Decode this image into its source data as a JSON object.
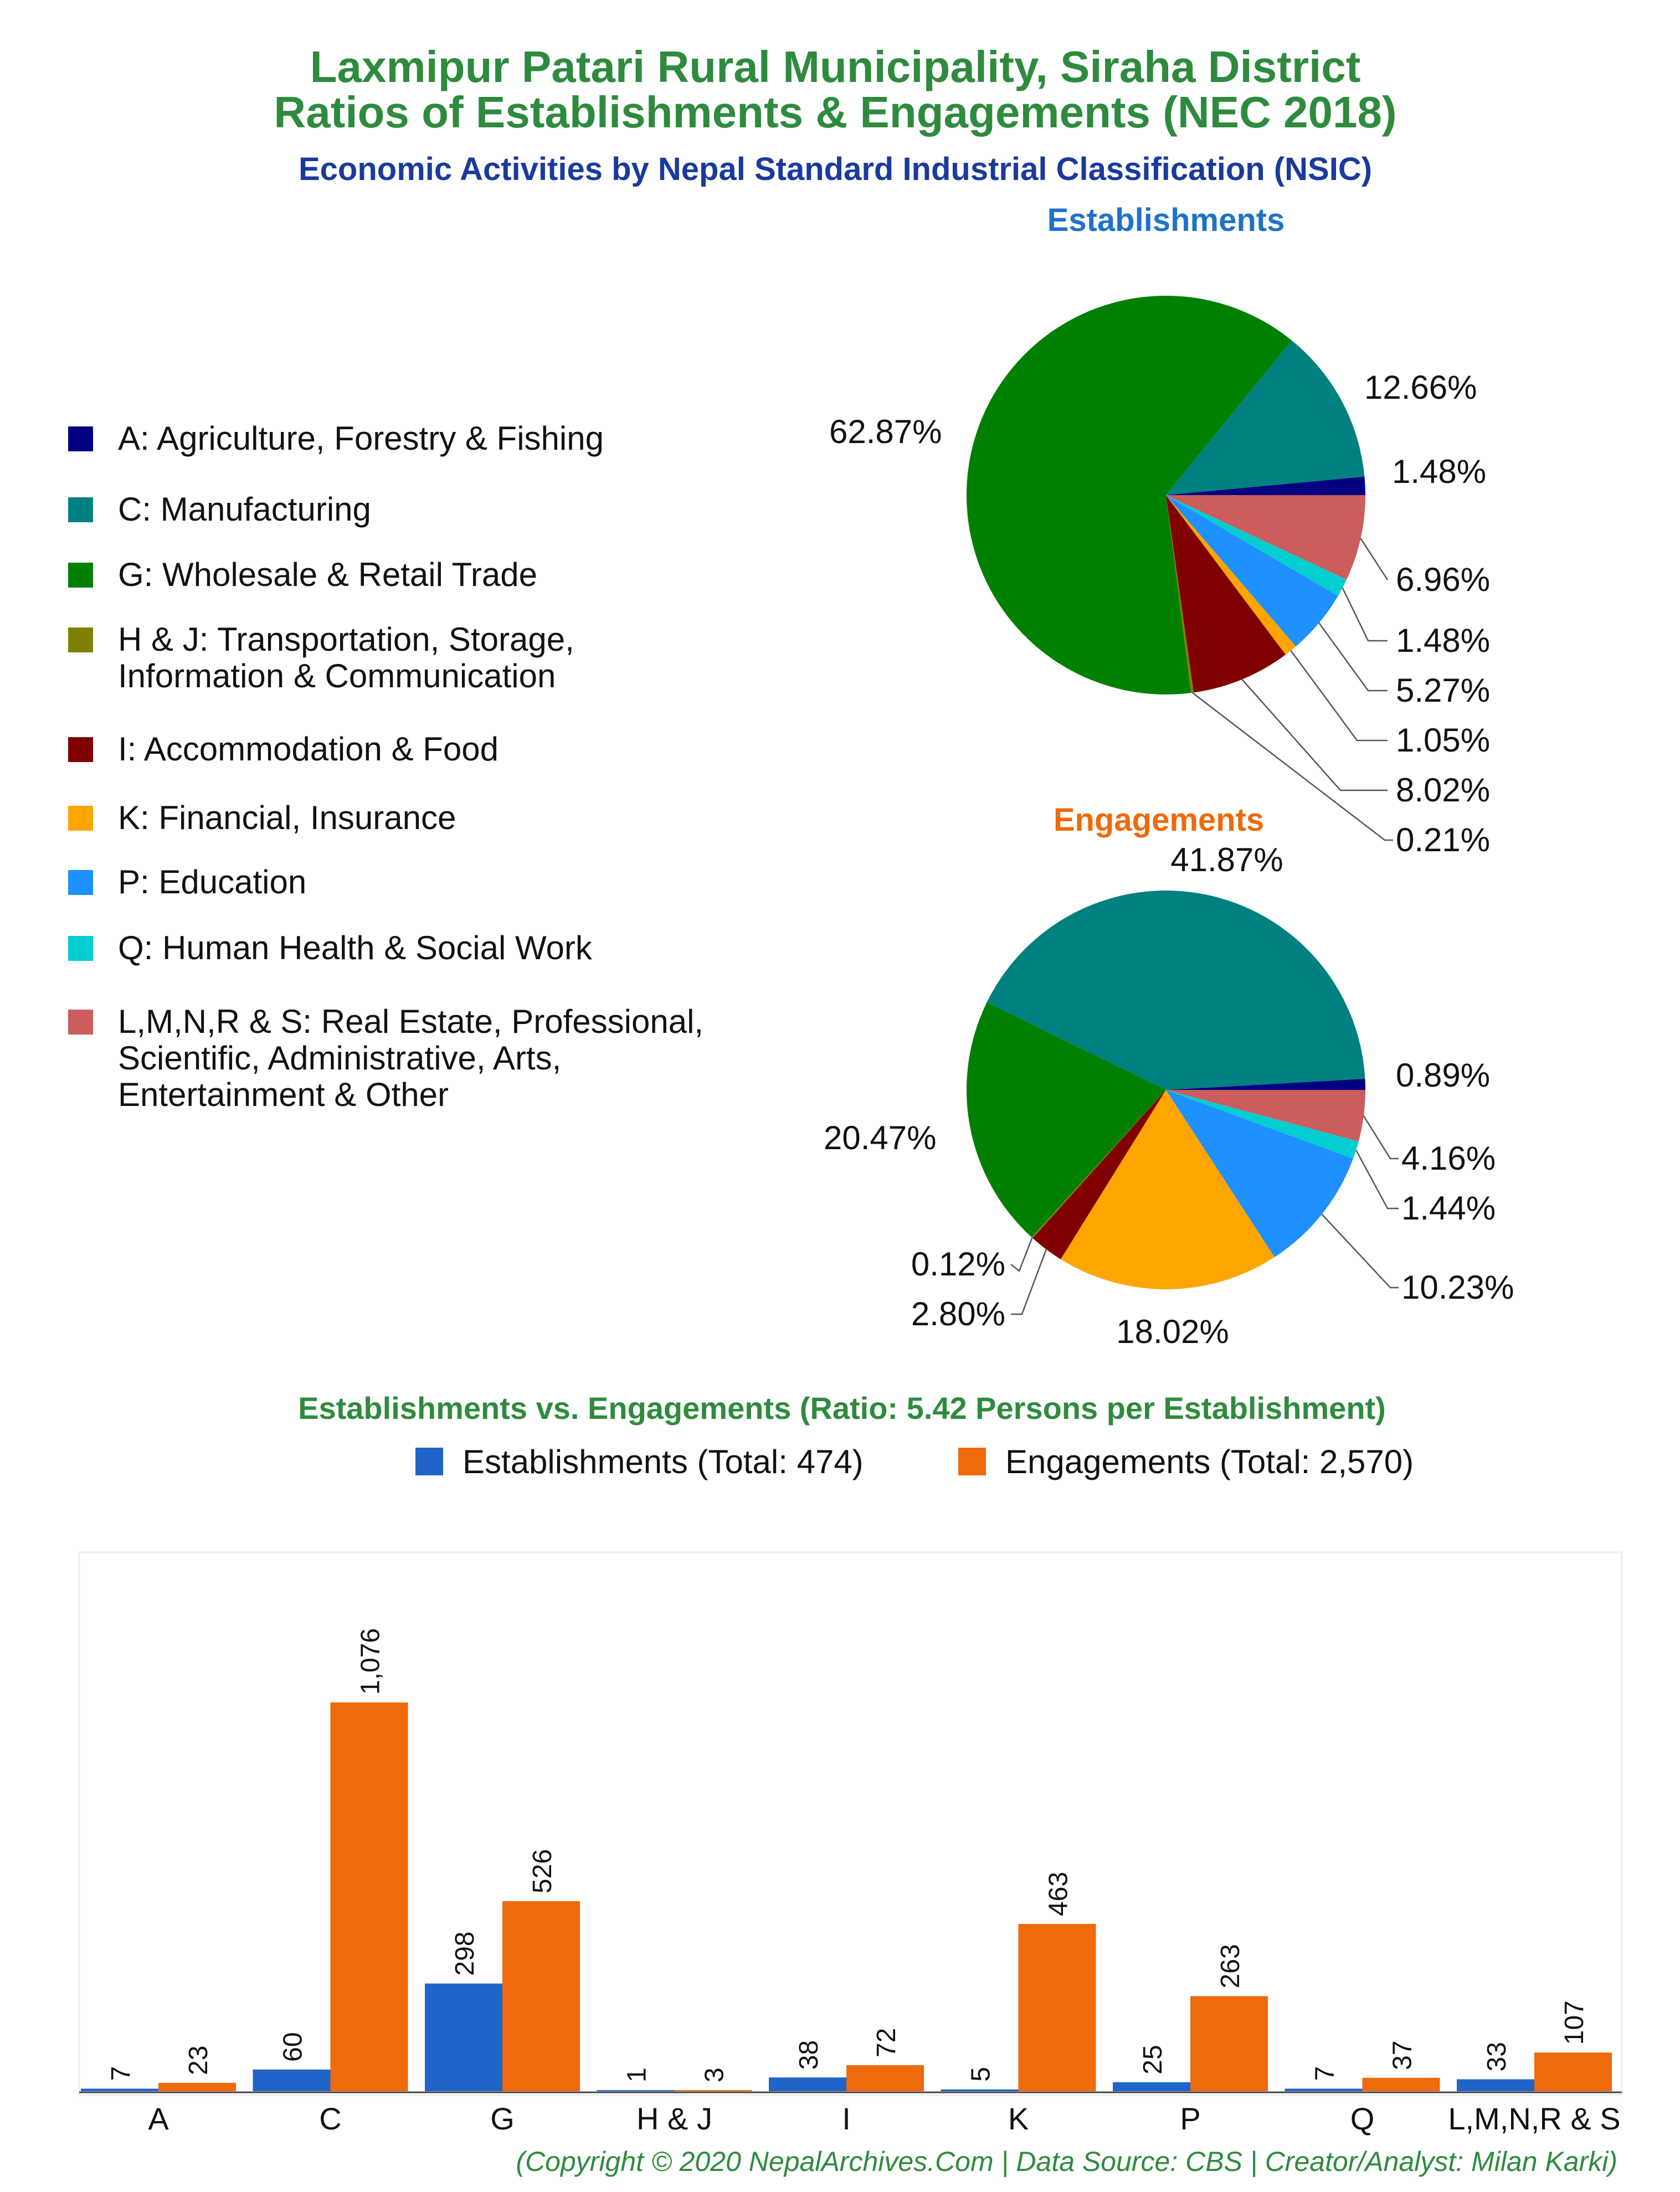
{
  "title": {
    "line1": "Laxmipur Patari Rural Municipality, Siraha District",
    "line2": "Ratios of Establishments & Engagements (NEC 2018)",
    "subtitle": "Economic Activities by Nepal Standard Industrial Classification (NSIC)"
  },
  "colors": {
    "title": "#2e8b3e",
    "subtitle": "#1a3a9c",
    "establishments": "#1f64c8",
    "engagements": "#ee6a0a",
    "A": "#000080",
    "C": "#008080",
    "G": "#008000",
    "HJ": "#808000",
    "I": "#800000",
    "K": "#ffa500",
    "P": "#1e90ff",
    "Q": "#00ced1",
    "LMNRS": "#cd5c5c"
  },
  "legend": [
    {
      "key": "A",
      "label": "A: Agriculture, Forestry & Fishing"
    },
    {
      "key": "C",
      "label": "C: Manufacturing"
    },
    {
      "key": "G",
      "label": "G: Wholesale & Retail Trade"
    },
    {
      "key": "HJ",
      "label": "H & J: Transportation, Storage,",
      "label2": "Information & Communication"
    },
    {
      "key": "I",
      "label": "I: Accommodation & Food"
    },
    {
      "key": "K",
      "label": "K: Financial, Insurance"
    },
    {
      "key": "P",
      "label": "P: Education"
    },
    {
      "key": "Q",
      "label": "Q: Human Health & Social Work"
    },
    {
      "key": "LMNRS",
      "label": "L,M,N,R & S: Real Estate, Professional,",
      "label2": "Scientific, Administrative, Arts,",
      "label3": "Entertainment & Other"
    }
  ],
  "chart_data": [
    {
      "type": "pie",
      "title": "Establishments",
      "slices": [
        {
          "key": "A",
          "value": 1.48,
          "label": "1.48%"
        },
        {
          "key": "C",
          "value": 12.66,
          "label": "12.66%"
        },
        {
          "key": "G",
          "value": 62.87,
          "label": "62.87%"
        },
        {
          "key": "HJ",
          "value": 0.21,
          "label": "0.21%"
        },
        {
          "key": "I",
          "value": 8.02,
          "label": "8.02%"
        },
        {
          "key": "K",
          "value": 1.05,
          "label": "1.05%"
        },
        {
          "key": "P",
          "value": 5.27,
          "label": "5.27%"
        },
        {
          "key": "Q",
          "value": 1.48,
          "label": "1.48%"
        },
        {
          "key": "LMNRS",
          "value": 6.96,
          "label": "6.96%"
        }
      ]
    },
    {
      "type": "pie",
      "title": "Engagements",
      "slices": [
        {
          "key": "A",
          "value": 0.89,
          "label": "0.89%"
        },
        {
          "key": "C",
          "value": 41.87,
          "label": "41.87%"
        },
        {
          "key": "G",
          "value": 20.47,
          "label": "20.47%"
        },
        {
          "key": "HJ",
          "value": 0.12,
          "label": "0.12%"
        },
        {
          "key": "I",
          "value": 2.8,
          "label": "2.80%"
        },
        {
          "key": "K",
          "value": 18.02,
          "label": "18.02%"
        },
        {
          "key": "P",
          "value": 10.23,
          "label": "10.23%"
        },
        {
          "key": "Q",
          "value": 1.44,
          "label": "1.44%"
        },
        {
          "key": "LMNRS",
          "value": 4.16,
          "label": "4.16%"
        }
      ]
    },
    {
      "type": "bar",
      "title": "Establishments vs. Engagements (Ratio: 5.42 Persons per Establishment)",
      "categories": [
        "A",
        "C",
        "G",
        "H & J",
        "I",
        "K",
        "P",
        "Q",
        "L,M,N,R & S"
      ],
      "series": [
        {
          "name": "Establishments (Total: 474)",
          "values": [
            7,
            60,
            298,
            1,
            38,
            5,
            25,
            7,
            33
          ],
          "labels": [
            "7",
            "60",
            "298",
            "1",
            "38",
            "5",
            "25",
            "7",
            "33"
          ]
        },
        {
          "name": "Engagements (Total: 2,570)",
          "values": [
            23,
            1076,
            526,
            3,
            72,
            463,
            263,
            37,
            107
          ],
          "labels": [
            "23",
            "1,076",
            "526",
            "3",
            "72",
            "463",
            "263",
            "37",
            "107"
          ]
        }
      ],
      "ylim": [
        0,
        1076
      ]
    }
  ],
  "footer": "(Copyright © 2020 NepalArchives.Com | Data Source: CBS | Creator/Analyst: Milan Karki)"
}
